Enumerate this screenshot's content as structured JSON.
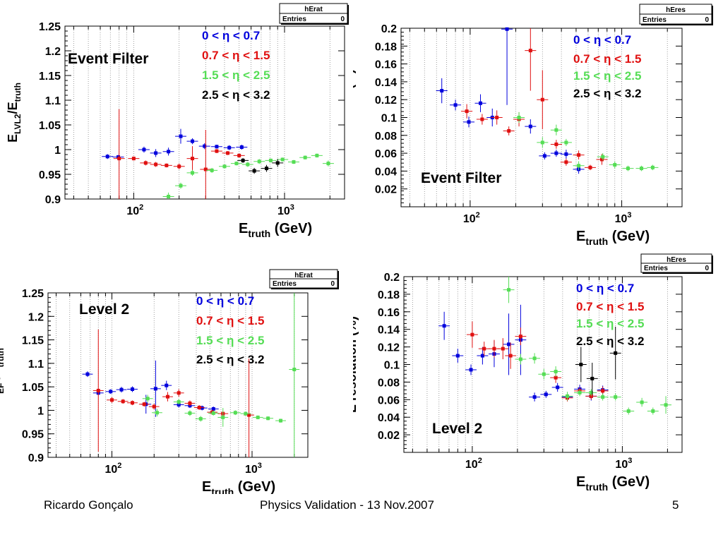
{
  "footer": {
    "author": "Ricardo Gonçalo",
    "title": "Physics Validation - 13 Nov.2007",
    "page": "5"
  },
  "legend": {
    "labels": [
      "0 < η < 0.7",
      "0.7 <  η < 1.5",
      "1.5 < η < 2.5",
      "2.5 < η < 3.2"
    ],
    "colors": [
      "#0000dd",
      "#e01010",
      "#55dd55",
      "#000000"
    ]
  },
  "chart_data": [
    {
      "id": "tl",
      "type": "scatter",
      "stats_box": {
        "name": "hErat",
        "entries_label": "Entries",
        "entries_value": "0"
      },
      "label": "Event Filter",
      "ylabel_main": "E",
      "ylabel_sub1": "LVL2",
      "ylabel_mid": "/E",
      "ylabel_sub2": "truth",
      "xlabel_main": "E",
      "xlabel_sub": "truth",
      "xlabel_unit": " (GeV)",
      "xscale": "log",
      "xlim": [
        35,
        2500
      ],
      "ylim": [
        0.9,
        1.25
      ],
      "yticks": [
        "0.9",
        "0.95",
        "1",
        "1.05",
        "1.1",
        "1.15",
        "1.2",
        "1.25"
      ],
      "xticks": [
        "10^2",
        "10^3"
      ],
      "series": [
        {
          "points": [
            [
              67,
              0.986,
              0.005
            ],
            [
              79,
              0.985,
              0.004
            ],
            [
              117,
              1.0,
              0.006
            ],
            [
              140,
              0.993,
              0.008
            ],
            [
              170,
              0.996,
              0.008
            ],
            [
              205,
              1.027,
              0.015
            ],
            [
              245,
              1.017,
              0.006
            ],
            [
              295,
              1.007,
              0.006
            ],
            [
              355,
              1.006,
              0.004
            ],
            [
              430,
              1.004,
              0.005
            ],
            [
              520,
              1.005,
              0.005
            ]
          ]
        },
        {
          "points": [
            [
              80,
              0.982,
              0.1
            ],
            [
              100,
              0.982,
              0.004
            ],
            [
              120,
              0.973,
              0.005
            ],
            [
              140,
              0.97,
              0.005
            ],
            [
              165,
              0.968,
              0.004
            ],
            [
              200,
              0.966,
              0.006
            ],
            [
              245,
              0.982,
              0.025
            ],
            [
              300,
              0.96,
              0.08
            ],
            [
              355,
              0.997,
              0.004
            ],
            [
              420,
              0.993,
              0.004
            ],
            [
              500,
              0.988,
              0.004
            ]
          ]
        },
        {
          "points": [
            [
              170,
              0.905,
              0.008
            ],
            [
              205,
              0.927,
              0.006
            ],
            [
              245,
              0.953,
              0.006
            ],
            [
              330,
              0.958,
              0.005
            ],
            [
              400,
              0.966,
              0.004
            ],
            [
              480,
              0.972,
              0.004
            ],
            [
              570,
              0.97,
              0.005
            ],
            [
              680,
              0.976,
              0.005
            ],
            [
              810,
              0.978,
              0.004
            ],
            [
              970,
              0.98,
              0.004
            ],
            [
              1150,
              0.975,
              0.004
            ],
            [
              1370,
              0.984,
              0.004
            ],
            [
              1640,
              0.988,
              0.004
            ],
            [
              1950,
              0.972,
              0.006
            ]
          ]
        },
        {
          "points": [
            [
              530,
              0.978,
              0.005
            ],
            [
              630,
              0.957,
              0.006
            ],
            [
              760,
              0.962,
              0.007
            ],
            [
              900,
              0.973,
              0.008
            ]
          ]
        }
      ]
    },
    {
      "id": "tr",
      "type": "scatter",
      "stats_box": {
        "name": "hEres",
        "entries_label": "Entries",
        "entries_value": "0"
      },
      "label": "Event Filter",
      "ylabel_main": "E resolution (%)",
      "xlabel_main": "E",
      "xlabel_sub": "truth",
      "xlabel_unit": " (GeV)",
      "xscale": "log",
      "xlim": [
        35,
        2500
      ],
      "ylim": [
        0.0,
        0.2
      ],
      "yticks": [
        "0.02",
        "0.04",
        "0.06",
        "0.08",
        "0.1",
        "0.12",
        "0.14",
        "0.16",
        "0.18",
        "0.2"
      ],
      "xticks": [
        "10^2",
        "10^3"
      ],
      "series": [
        {
          "points": [
            [
              65,
              0.13,
              0.014
            ],
            [
              80,
              0.114,
              0.006
            ],
            [
              98,
              0.095,
              0.006
            ],
            [
              117,
              0.116,
              0.01
            ],
            [
              140,
              0.1,
              0.01
            ],
            [
              175,
              0.199,
              0.085
            ],
            [
              250,
              0.09,
              0.008
            ],
            [
              310,
              0.057,
              0.004
            ],
            [
              370,
              0.06,
              0.004
            ],
            [
              430,
              0.059,
              0.005
            ],
            [
              520,
              0.042,
              0.005
            ]
          ]
        },
        {
          "points": [
            [
              95,
              0.107,
              0.008
            ],
            [
              120,
              0.098,
              0.006
            ],
            [
              150,
              0.1,
              0.008
            ],
            [
              180,
              0.085,
              0.005
            ],
            [
              210,
              0.098,
              0.008
            ],
            [
              250,
              0.175,
              0.045
            ],
            [
              300,
              0.12,
              0.033
            ],
            [
              370,
              0.07,
              0.005
            ],
            [
              430,
              0.05,
              0.004
            ],
            [
              520,
              0.058,
              0.005
            ],
            [
              620,
              0.044,
              0.003
            ],
            [
              740,
              0.053,
              0.006
            ]
          ]
        },
        {
          "points": [
            [
              210,
              0.1,
              0.006
            ],
            [
              300,
              0.072,
              0.006
            ],
            [
              370,
              0.086,
              0.006
            ],
            [
              430,
              0.072,
              0.004
            ],
            [
              520,
              0.046,
              0.005
            ],
            [
              750,
              0.056,
              0.004
            ],
            [
              900,
              0.047,
              0.004
            ],
            [
              1100,
              0.043,
              0.003
            ],
            [
              1350,
              0.043,
              0.003
            ],
            [
              1600,
              0.044,
              0.003
            ]
          ]
        },
        {
          "points": []
        }
      ]
    },
    {
      "id": "bl",
      "type": "scatter",
      "stats_box": {
        "name": "hErat",
        "entries_label": "Entries",
        "entries_value": "0"
      },
      "label": "Level 2",
      "ylabel_main": "E",
      "ylabel_sub1": "EF",
      "ylabel_mid": "  /E",
      "ylabel_sub2": "truth",
      "xlabel_main": "E",
      "xlabel_sub": "truth",
      "xlabel_unit": " (GeV)",
      "xscale": "log",
      "xlim": [
        35,
        2500
      ],
      "ylim": [
        0.9,
        1.25
      ],
      "yticks": [
        "0.9",
        "0.95",
        "1",
        "1.05",
        "1.1",
        "1.15",
        "1.2",
        "1.25"
      ],
      "xticks": [
        "10^2",
        "10^3"
      ],
      "series": [
        {
          "points": [
            [
              67,
              1.077,
              0.006
            ],
            [
              80,
              1.037,
              0.005
            ],
            [
              98,
              1.04,
              0.005
            ],
            [
              117,
              1.044,
              0.006
            ],
            [
              140,
              1.045,
              0.006
            ],
            [
              175,
              1.013,
              0.02
            ],
            [
              205,
              1.046,
              0.06
            ],
            [
              245,
              1.053,
              0.01
            ],
            [
              300,
              1.012,
              0.006
            ],
            [
              360,
              1.01,
              0.005
            ],
            [
              440,
              1.005,
              0.005
            ],
            [
              530,
              1.003,
              0.005
            ]
          ]
        },
        {
          "points": [
            [
              80,
              1.042,
              0.13
            ],
            [
              100,
              1.022,
              0.006
            ],
            [
              120,
              1.019,
              0.005
            ],
            [
              140,
              1.016,
              0.005
            ],
            [
              170,
              1.013,
              0.005
            ],
            [
              200,
              1.008,
              0.006
            ],
            [
              250,
              1.029,
              0.01
            ],
            [
              300,
              1.037,
              0.008
            ],
            [
              360,
              1.015,
              0.006
            ],
            [
              420,
              1.006,
              0.005
            ],
            [
              520,
              0.996,
              0.005
            ],
            [
              620,
              0.993,
              0.004
            ],
            [
              950,
              0.99,
              0.12
            ]
          ]
        },
        {
          "points": [
            [
              180,
              1.025,
              0.008
            ],
            [
              210,
              0.995,
              0.008
            ],
            [
              300,
              1.018,
              0.006
            ],
            [
              360,
              0.994,
              0.006
            ],
            [
              430,
              0.982,
              0.006
            ],
            [
              530,
              0.994,
              0.005
            ],
            [
              620,
              0.985,
              0.02
            ],
            [
              760,
              0.995,
              0.005
            ],
            [
              900,
              0.993,
              0.004
            ],
            [
              1100,
              0.985,
              0.004
            ],
            [
              1300,
              0.983,
              0.004
            ],
            [
              1600,
              0.978,
              0.004
            ],
            [
              2000,
              1.087,
              0.2
            ]
          ]
        },
        {
          "points": []
        }
      ]
    },
    {
      "id": "br",
      "type": "scatter",
      "stats_box": {
        "name": "hEres",
        "entries_label": "Entries",
        "entries_value": "0"
      },
      "label": "Level 2",
      "ylabel_main": "E resolution (%)",
      "xlabel_main": "E",
      "xlabel_sub": "truth",
      "xlabel_unit": " (GeV)",
      "xscale": "log",
      "xlim": [
        35,
        2500
      ],
      "ylim": [
        0.0,
        0.2
      ],
      "yticks": [
        "0.02",
        "0.04",
        "0.06",
        "0.08",
        "0.1",
        "0.12",
        "0.14",
        "0.16",
        "0.18",
        "0.2"
      ],
      "xticks": [
        "10^2",
        "10^3"
      ],
      "series": [
        {
          "points": [
            [
              65,
              0.144,
              0.016
            ],
            [
              80,
              0.11,
              0.008
            ],
            [
              98,
              0.094,
              0.006
            ],
            [
              117,
              0.11,
              0.01
            ],
            [
              140,
              0.112,
              0.015
            ],
            [
              175,
              0.123,
              0.035
            ],
            [
              210,
              0.128,
              0.04
            ],
            [
              260,
              0.063,
              0.005
            ],
            [
              310,
              0.066,
              0.004
            ],
            [
              370,
              0.074,
              0.005
            ],
            [
              430,
              0.063,
              0.004
            ],
            [
              520,
              0.072,
              0.005
            ],
            [
              620,
              0.064,
              0.005
            ],
            [
              740,
              0.071,
              0.005
            ]
          ]
        },
        {
          "points": [
            [
              100,
              0.134,
              0.015
            ],
            [
              120,
              0.118,
              0.008
            ],
            [
              140,
              0.118,
              0.01
            ],
            [
              160,
              0.118,
              0.012
            ],
            [
              180,
              0.11,
              0.015
            ],
            [
              210,
              0.132,
              0.01
            ],
            [
              360,
              0.085,
              0.006
            ],
            [
              430,
              0.062,
              0.004
            ],
            [
              520,
              0.07,
              0.004
            ],
            [
              620,
              0.064,
              0.004
            ],
            [
              740,
              0.07,
              0.005
            ]
          ]
        },
        {
          "points": [
            [
              175,
              0.185,
              0.015
            ],
            [
              210,
              0.106,
              0.006
            ],
            [
              260,
              0.107,
              0.006
            ],
            [
              300,
              0.089,
              0.006
            ],
            [
              360,
              0.092,
              0.006
            ],
            [
              430,
              0.064,
              0.005
            ],
            [
              520,
              0.068,
              0.004
            ],
            [
              620,
              0.068,
              0.004
            ],
            [
              740,
              0.063,
              0.004
            ],
            [
              900,
              0.063,
              0.004
            ],
            [
              1100,
              0.047,
              0.004
            ],
            [
              1350,
              0.057,
              0.005
            ],
            [
              1600,
              0.047,
              0.004
            ],
            [
              1950,
              0.054,
              0.01
            ]
          ]
        },
        {
          "points": [
            [
              530,
              0.1,
              0.02
            ],
            [
              630,
              0.084,
              0.018
            ],
            [
              900,
              0.113,
              0.03
            ]
          ]
        }
      ]
    }
  ]
}
